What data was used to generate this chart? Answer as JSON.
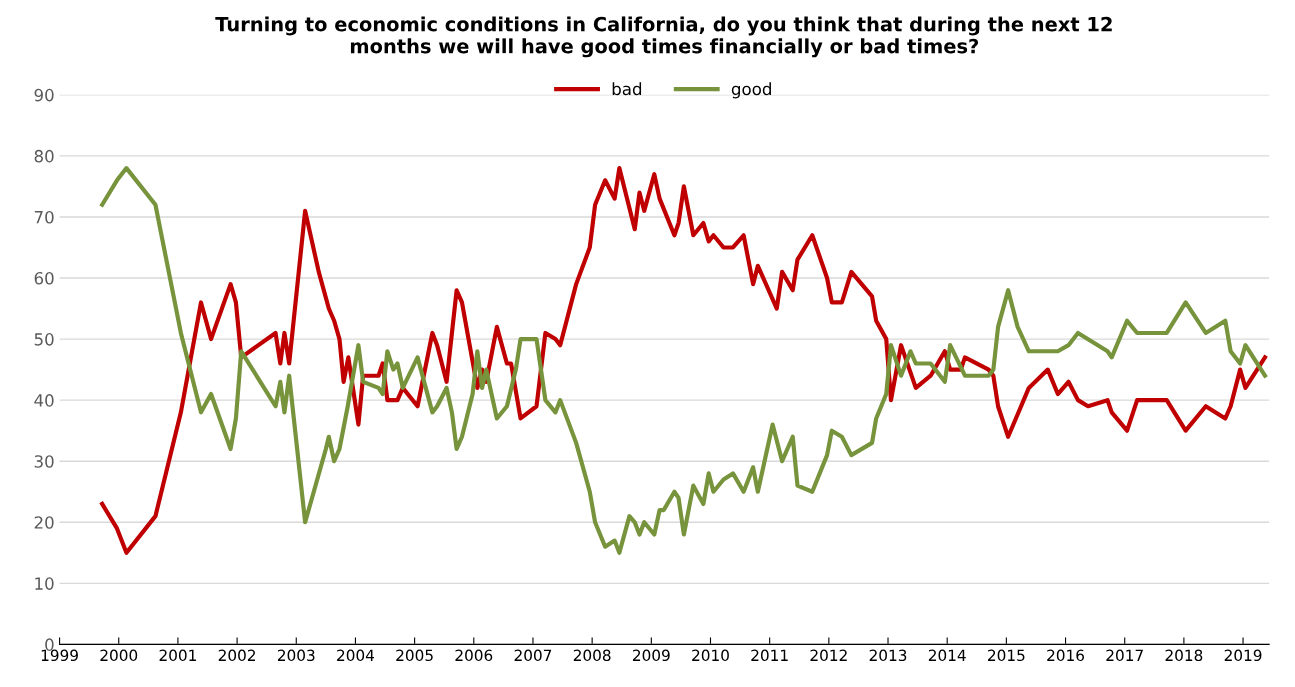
{
  "chart_data": {
    "type": "line",
    "title": "Turning to economic conditions in California, do you think that during the next 12\nmonths we will have good times financially or bad times?",
    "series": [
      {
        "name": "bad",
        "color": "#c00000",
        "x": [
          1999.72,
          1999.97,
          2000.13,
          2000.62,
          2001.05,
          2001.39,
          2001.56,
          2001.89,
          2001.98,
          2002.07,
          2002.65,
          2002.73,
          2002.8,
          2002.88,
          2003.15,
          2003.38,
          2003.55,
          2003.64,
          2003.73,
          2003.8,
          2003.88,
          2004.05,
          2004.13,
          2004.39,
          2004.46,
          2004.54,
          2004.71,
          2004.8,
          2005.05,
          2005.3,
          2005.38,
          2005.54,
          2005.71,
          2005.8,
          2006.06,
          2006.14,
          2006.21,
          2006.39,
          2006.56,
          2006.63,
          2006.79,
          2007.06,
          2007.21,
          2007.38,
          2007.46,
          2007.73,
          2007.96,
          2008.05,
          2008.22,
          2008.38,
          2008.46,
          2008.72,
          2008.8,
          2008.88,
          2009.05,
          2009.14,
          2009.39,
          2009.46,
          2009.55,
          2009.71,
          2009.88,
          2009.97,
          2010.05,
          2010.22,
          2010.38,
          2010.56,
          2010.72,
          2010.8,
          2011.12,
          2011.21,
          2011.39,
          2011.47,
          2011.72,
          2011.97,
          2012.05,
          2012.22,
          2012.38,
          2012.73,
          2012.8,
          2012.97,
          2013.05,
          2013.22,
          2013.47,
          2013.72,
          2013.96,
          2014.05,
          2014.23,
          2014.3,
          2014.7,
          2014.78,
          2014.86,
          2015.03,
          2015.38,
          2015.7,
          2015.87,
          2016.05,
          2016.21,
          2016.38,
          2016.71,
          2016.78,
          2017.04,
          2017.21,
          2017.71,
          2018.03,
          2018.37,
          2018.7,
          2018.79,
          2018.95,
          2019.04,
          2019.37
        ],
        "values": [
          23,
          19,
          15,
          21,
          38,
          56,
          50,
          59,
          56,
          47,
          51,
          46,
          51,
          46,
          71,
          61,
          55,
          53,
          50,
          43,
          47,
          36,
          44,
          44,
          46,
          40,
          40,
          42,
          39,
          51,
          49,
          43,
          58,
          56,
          42,
          45,
          43,
          52,
          46,
          46,
          37,
          39,
          51,
          50,
          49,
          59,
          65,
          72,
          76,
          73,
          78,
          68,
          74,
          71,
          77,
          73,
          67,
          69,
          75,
          67,
          69,
          66,
          67,
          65,
          65,
          67,
          59,
          62,
          55,
          61,
          58,
          63,
          67,
          60,
          56,
          56,
          61,
          57,
          53,
          50,
          40,
          49,
          42,
          44,
          48,
          45,
          45,
          47,
          45,
          44,
          39,
          34,
          42,
          45,
          41,
          43,
          40,
          39,
          40,
          38,
          35,
          40,
          40,
          35,
          39,
          37,
          39,
          45,
          42,
          47
        ]
      },
      {
        "name": "good",
        "color": "#77933c",
        "x": [
          1999.72,
          1999.97,
          2000.13,
          2000.62,
          2001.05,
          2001.39,
          2001.56,
          2001.89,
          2001.98,
          2002.07,
          2002.65,
          2002.73,
          2002.8,
          2002.88,
          2003.15,
          2003.5,
          2003.55,
          2003.64,
          2003.73,
          2003.87,
          2004.05,
          2004.13,
          2004.39,
          2004.46,
          2004.54,
          2004.64,
          2004.71,
          2004.8,
          2005.05,
          2005.3,
          2005.38,
          2005.54,
          2005.63,
          2005.71,
          2005.8,
          2005.98,
          2006.06,
          2006.14,
          2006.21,
          2006.39,
          2006.56,
          2006.71,
          2006.79,
          2007.06,
          2007.21,
          2007.38,
          2007.46,
          2007.73,
          2007.96,
          2008.05,
          2008.22,
          2008.38,
          2008.46,
          2008.63,
          2008.72,
          2008.8,
          2008.88,
          2009.05,
          2009.14,
          2009.21,
          2009.39,
          2009.46,
          2009.55,
          2009.71,
          2009.88,
          2009.97,
          2010.05,
          2010.22,
          2010.38,
          2010.56,
          2010.72,
          2010.8,
          2011.05,
          2011.21,
          2011.39,
          2011.47,
          2011.72,
          2011.97,
          2012.05,
          2012.22,
          2012.38,
          2012.73,
          2012.8,
          2012.97,
          2013.05,
          2013.22,
          2013.38,
          2013.47,
          2013.72,
          2013.96,
          2014.05,
          2014.3,
          2014.7,
          2014.78,
          2014.86,
          2015.03,
          2015.19,
          2015.38,
          2015.87,
          2016.05,
          2016.21,
          2016.71,
          2016.78,
          2017.04,
          2017.21,
          2017.71,
          2018.03,
          2018.37,
          2018.7,
          2018.79,
          2018.95,
          2019.04,
          2019.37
        ],
        "values": [
          72,
          76,
          78,
          72,
          51,
          38,
          41,
          32,
          37,
          48,
          39,
          43,
          38,
          44,
          20,
          32,
          34,
          30,
          32,
          39,
          49,
          43,
          42,
          41,
          48,
          45,
          46,
          42,
          47,
          38,
          39,
          42,
          38,
          32,
          34,
          41,
          48,
          42,
          45,
          37,
          39,
          45,
          50,
          50,
          40,
          38,
          40,
          33,
          25,
          20,
          16,
          17,
          15,
          21,
          20,
          18,
          20,
          18,
          22,
          22,
          25,
          24,
          18,
          26,
          23,
          28,
          25,
          27,
          28,
          25,
          29,
          25,
          36,
          30,
          34,
          26,
          25,
          31,
          35,
          34,
          31,
          33,
          37,
          41,
          49,
          44,
          48,
          46,
          46,
          43,
          49,
          44,
          44,
          45,
          52,
          58,
          52,
          48,
          48,
          49,
          51,
          48,
          47,
          53,
          51,
          51,
          56,
          51,
          53,
          48,
          46,
          49,
          44
        ]
      }
    ],
    "xlim": [
      1999,
      2019.44
    ],
    "xticks": [
      1999,
      2000,
      2001,
      2002,
      2003,
      2004,
      2005,
      2006,
      2007,
      2008,
      2009,
      2010,
      2011,
      2012,
      2013,
      2014,
      2015,
      2016,
      2017,
      2018,
      2019
    ],
    "ylim": [
      0,
      90
    ],
    "yticks": [
      0,
      10,
      20,
      30,
      40,
      50,
      60,
      70,
      80,
      90
    ],
    "grid": "y",
    "legend": "top",
    "marker": "none",
    "line_style": "solid"
  }
}
